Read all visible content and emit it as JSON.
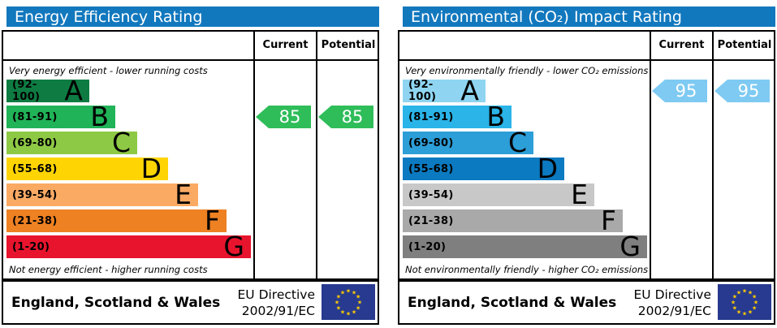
{
  "colors": {
    "header_bar_blue": "#1278be",
    "energy_arrow_green": "#2ebd59",
    "co2_arrow_blue": "#7ecaf2",
    "eu_flag_blue": "#273a8f",
    "eu_star_yellow": "#ffcc00"
  },
  "panels": [
    {
      "title": "Energy Efficiency Rating",
      "header": {
        "current": "Current",
        "potential": "Potential"
      },
      "top_note": "Very energy efficient - lower running costs",
      "bottom_note": "Not energy efficient - higher running costs",
      "bands": [
        {
          "range": "(92-100)",
          "letter": "A",
          "color": "#0e7c42"
        },
        {
          "range": "(81-91)",
          "letter": "B",
          "color": "#20b357"
        },
        {
          "range": "(69-80)",
          "letter": "C",
          "color": "#8ec945"
        },
        {
          "range": "(55-68)",
          "letter": "D",
          "color": "#fed502"
        },
        {
          "range": "(39-54)",
          "letter": "E",
          "color": "#fbaa64"
        },
        {
          "range": "(21-38)",
          "letter": "F",
          "color": "#ee8122"
        },
        {
          "range": "(1-20)",
          "letter": "G",
          "color": "#e8142d"
        }
      ],
      "current": {
        "value": "85",
        "band_index": 1,
        "color": "#2ebd59"
      },
      "potential": {
        "value": "85",
        "band_index": 1,
        "color": "#2ebd59"
      },
      "footer": {
        "region": "England, Scotland & Wales",
        "directive_line1": "EU Directive",
        "directive_line2": "2002/91/EC"
      }
    },
    {
      "title": "Environmental (CO₂) Impact Rating",
      "header": {
        "current": "Current",
        "potential": "Potential"
      },
      "top_note": "Very environmentally friendly - lower CO₂ emissions",
      "bottom_note": "Not environmentally friendly - higher CO₂ emissions",
      "bands": [
        {
          "range": "(92-100)",
          "letter": "A",
          "color": "#8fd5f2"
        },
        {
          "range": "(81-91)",
          "letter": "B",
          "color": "#2ab4e8"
        },
        {
          "range": "(69-80)",
          "letter": "C",
          "color": "#2c9ed8"
        },
        {
          "range": "(55-68)",
          "letter": "D",
          "color": "#0b7ac1"
        },
        {
          "range": "(39-54)",
          "letter": "E",
          "color": "#c7c8c7"
        },
        {
          "range": "(21-38)",
          "letter": "F",
          "color": "#a8a9a8"
        },
        {
          "range": "(1-20)",
          "letter": "G",
          "color": "#7e7f7e"
        }
      ],
      "current": {
        "value": "95",
        "band_index": 0,
        "color": "#7ecaf2"
      },
      "potential": {
        "value": "95",
        "band_index": 0,
        "color": "#7ecaf2"
      },
      "footer": {
        "region": "England, Scotland & Wales",
        "directive_line1": "EU Directive",
        "directive_line2": "2002/91/EC"
      }
    }
  ],
  "chart_data": [
    {
      "type": "bar",
      "title": "Energy Efficiency Rating",
      "categories": [
        "A (92-100)",
        "B (81-91)",
        "C (69-80)",
        "D (55-68)",
        "E (39-54)",
        "F (21-38)",
        "G (1-20)"
      ],
      "series": [
        {
          "name": "Current",
          "values": [
            85
          ]
        },
        {
          "name": "Potential",
          "values": [
            85
          ]
        }
      ],
      "annotations": [
        "Very energy efficient - lower running costs",
        "Not energy efficient - higher running costs",
        "England, Scotland & Wales",
        "EU Directive 2002/91/EC"
      ],
      "value_range": [
        1,
        100
      ]
    },
    {
      "type": "bar",
      "title": "Environmental (CO₂) Impact Rating",
      "categories": [
        "A (92-100)",
        "B (81-91)",
        "C (69-80)",
        "D (55-68)",
        "E (39-54)",
        "F (21-38)",
        "G (1-20)"
      ],
      "series": [
        {
          "name": "Current",
          "values": [
            95
          ]
        },
        {
          "name": "Potential",
          "values": [
            95
          ]
        }
      ],
      "annotations": [
        "Very environmentally friendly - lower CO₂ emissions",
        "Not environmentally friendly - higher CO₂ emissions",
        "England, Scotland & Wales",
        "EU Directive 2002/91/EC"
      ],
      "value_range": [
        1,
        100
      ]
    }
  ]
}
